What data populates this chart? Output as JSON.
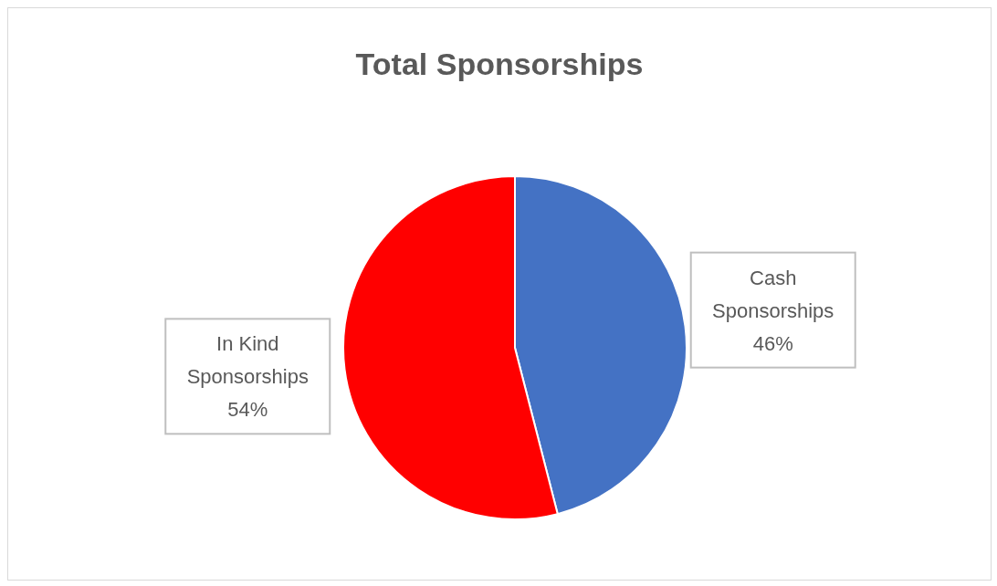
{
  "chart_data": {
    "type": "pie",
    "title": "Total Sponsorships",
    "categories": [
      "Cash Sponsorships",
      "In Kind Sponsorships"
    ],
    "values": [
      46,
      54
    ],
    "colors": [
      "#4472c4",
      "#ff0000"
    ],
    "value_labels": [
      "46%",
      "54%"
    ],
    "legend": false
  }
}
